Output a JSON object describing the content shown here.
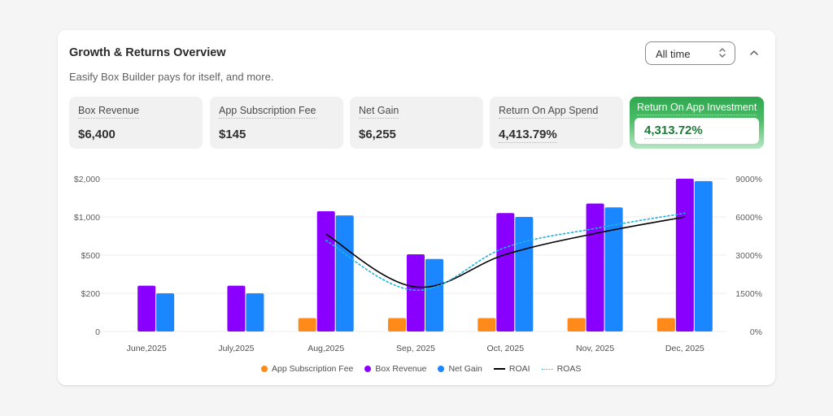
{
  "card": {
    "title": "Growth & Returns Overview",
    "subtitle": "Easify Box Builder pays for itself, and more.",
    "range_select": {
      "value": "All time",
      "icon": "select-arrows-icon"
    },
    "collapse_icon": "chevron-up-icon"
  },
  "metrics": [
    {
      "label": "Box Revenue",
      "value": "$6,400"
    },
    {
      "label": "App Subscription Fee",
      "value": "$145"
    },
    {
      "label": "Net Gain",
      "value": "$6,255"
    },
    {
      "label": "Return On App Spend",
      "value": "4,413.79%"
    },
    {
      "label": "Return On App Investment",
      "value": "4,313.72%",
      "highlighted": true
    }
  ],
  "colors": {
    "fee": "#ff8a1a",
    "revenue": "#8a00ff",
    "net": "#1a86ff",
    "roai": "#000000",
    "roas": "#1fb3e0",
    "highlight": "#2fa84f",
    "highlight_text": "#1f7a38"
  },
  "chart_data": {
    "type": "bar",
    "title": "",
    "categories": [
      "June,2025",
      "July,2025",
      "Aug,2025",
      "Sep, 2025",
      "Oct, 2025",
      "Nov, 2025",
      "Dec, 2025"
    ],
    "y_left": {
      "ticks": [
        0,
        200,
        500,
        1000,
        2000
      ],
      "tick_labels": [
        "0",
        "$200",
        "$500",
        "$1,000",
        "$2,000"
      ],
      "scale": "piecewise"
    },
    "y_right": {
      "ticks": [
        0,
        1500,
        3000,
        6000,
        9000
      ],
      "tick_labels": [
        "0%",
        "1500%",
        "3000%",
        "6000%",
        "9000%"
      ],
      "scale": "piecewise"
    },
    "grid": true,
    "legend_position": "bottom-center",
    "series": [
      {
        "name": "App Subscription Fee",
        "type": "bar",
        "axis": "left",
        "color_key": "fee",
        "values": [
          0,
          0,
          70,
          70,
          70,
          70,
          70
        ]
      },
      {
        "name": "Box Revenue",
        "type": "bar",
        "axis": "left",
        "color_key": "revenue",
        "values": [
          260,
          260,
          1150,
          510,
          1100,
          1350,
          2000
        ]
      },
      {
        "name": "Net Gain",
        "type": "bar",
        "axis": "left",
        "color_key": "net",
        "values": [
          200,
          200,
          1040,
          470,
          1000,
          1250,
          1940
        ]
      },
      {
        "name": "ROAI",
        "type": "line",
        "style": "solid",
        "axis": "right",
        "color_key": "roai",
        "values": [
          null,
          null,
          4650,
          1750,
          3050,
          4700,
          6000
        ]
      },
      {
        "name": "ROAS",
        "type": "line",
        "style": "dotted",
        "axis": "right",
        "color_key": "roas",
        "values": [
          null,
          null,
          4150,
          1620,
          3600,
          5100,
          6300
        ]
      }
    ]
  }
}
